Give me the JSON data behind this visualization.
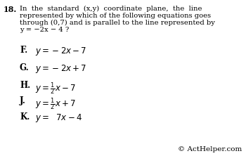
{
  "background_color": "#ffffff",
  "font_color": "#000000",
  "question_number": "18.",
  "question_text_lines": [
    "In  the  standard  (x,y)  coordinate  plane,  the  line",
    "represented by which of the following equations goes",
    "through (0,7) and is parallel to the line represented by",
    "y = −2x − 4 ?"
  ],
  "option_labels": [
    "F.",
    "G.",
    "H.",
    "J.",
    "K."
  ],
  "option_formulas": [
    "$y = -2x - 7$",
    "$y = -2x + 7$",
    "$y = \\frac{1}{2}x - 7$",
    "$y = \\frac{1}{2}x + 7$",
    "$y = \\ \\ 7x - 4$"
  ],
  "copyright": "© ActHelper.com",
  "fig_width": 3.5,
  "fig_height": 2.22,
  "dpi": 100
}
